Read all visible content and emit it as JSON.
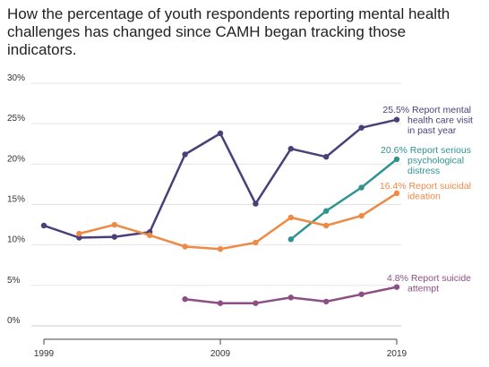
{
  "chart_data": {
    "type": "line",
    "title": "How the percentage of youth respondents reporting mental health challenges has changed since CAMH began tracking those indicators.",
    "xlabel": "",
    "ylabel": "",
    "x": [
      1999,
      2001,
      2003,
      2005,
      2007,
      2009,
      2011,
      2013,
      2015,
      2017,
      2019
    ],
    "x_ticks": [
      "1999",
      "2009",
      "2019"
    ],
    "y_ticks": [
      "0%",
      "5%",
      "10%",
      "15%",
      "20%",
      "25%",
      "30%"
    ],
    "xlim": [
      1999,
      2019
    ],
    "ylim": [
      0,
      30
    ],
    "grid": "horizontal",
    "legend": "none (direct labels at line ends, right side)",
    "series": [
      {
        "name": "Report mental health care visit in past year",
        "label_value": "25.5%",
        "label_lines": [
          "Report mental",
          "health care visit",
          "in past year"
        ],
        "color": "#4b3f7a",
        "x": [
          1999,
          2001,
          2003,
          2005,
          2007,
          2009,
          2011,
          2013,
          2015,
          2017,
          2019
        ],
        "values": [
          12.4,
          10.9,
          11.0,
          11.6,
          21.2,
          23.8,
          15.1,
          21.9,
          20.9,
          24.5,
          25.5
        ]
      },
      {
        "name": "Report serious psychological distress",
        "label_value": "20.6%",
        "label_lines": [
          "Report serious",
          "psychological",
          "distress"
        ],
        "color": "#2f9490",
        "x": [
          2013,
          2015,
          2017,
          2019
        ],
        "values": [
          10.7,
          14.2,
          17.1,
          20.6
        ]
      },
      {
        "name": "Report suicidal ideation",
        "label_value": "16.4%",
        "label_lines": [
          "Report suicidal",
          "ideation"
        ],
        "color": "#ee8a45",
        "x": [
          2001,
          2003,
          2005,
          2007,
          2009,
          2011,
          2013,
          2015,
          2017,
          2019
        ],
        "values": [
          11.4,
          12.5,
          11.2,
          9.8,
          9.5,
          10.3,
          13.4,
          12.4,
          13.6,
          16.4
        ]
      },
      {
        "name": "Report suicide attempt",
        "label_value": "4.8%",
        "label_lines": [
          "Report suicide",
          "attempt"
        ],
        "color": "#8c4f85",
        "x": [
          2007,
          2009,
          2011,
          2013,
          2015,
          2017,
          2019
        ],
        "values": [
          3.3,
          2.8,
          2.8,
          3.5,
          3.0,
          3.9,
          4.8
        ]
      }
    ],
    "colors": {
      "grid": "#e4e4e4",
      "axis": "#444444",
      "title": "#222222"
    }
  }
}
